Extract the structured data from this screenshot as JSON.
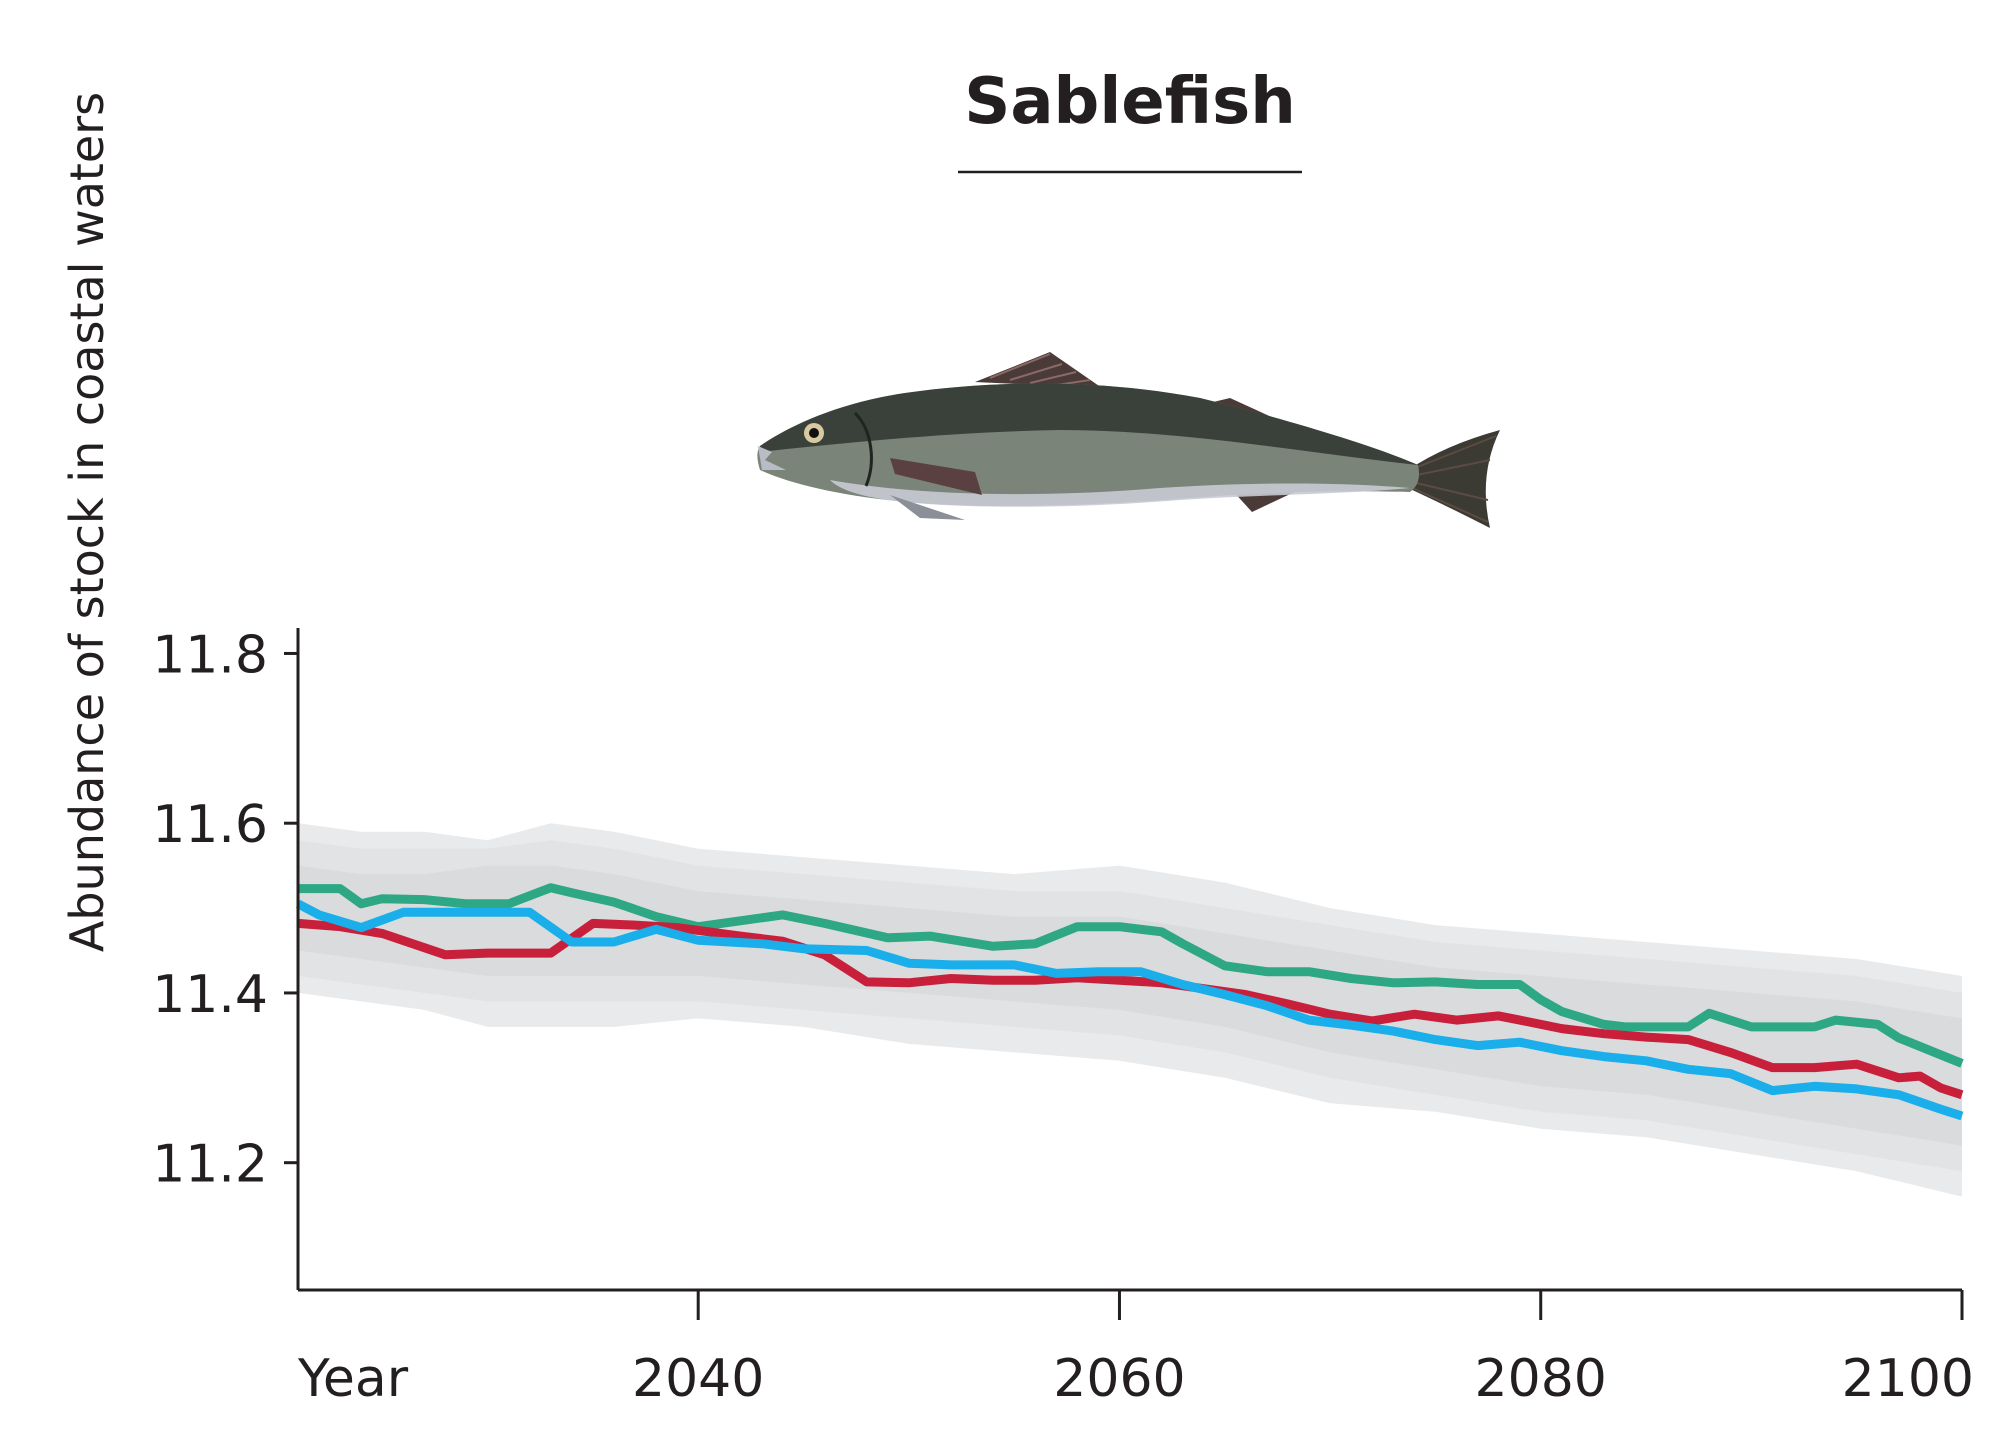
{
  "chart_data": {
    "type": "line",
    "title": "Sablefish",
    "xlabel": "Year",
    "ylabel": "Abundance of stock in coastal waters",
    "xlim": [
      2021,
      2100
    ],
    "ylim": [
      11.05,
      11.83
    ],
    "x_ticks": [
      2040,
      2060,
      2080,
      2100
    ],
    "x_tick_labels": [
      "2040",
      "2060",
      "2080",
      "2100"
    ],
    "y_ticks": [
      11.2,
      11.4,
      11.6,
      11.8
    ],
    "y_tick_labels": [
      "11.2",
      "11.4",
      "11.6",
      "11.8"
    ],
    "grid": false,
    "legend": "none",
    "illustration": "sablefish",
    "series": [
      {
        "color": "#2ea784",
        "x": [
          2021,
          2023,
          2024,
          2025,
          2027,
          2029,
          2031,
          2033,
          2034,
          2036,
          2038,
          2040,
          2044,
          2046,
          2049,
          2051,
          2054,
          2056,
          2058,
          2060,
          2062,
          2063,
          2065,
          2067,
          2069,
          2071,
          2073,
          2075,
          2077,
          2079,
          2080,
          2081,
          2083,
          2084,
          2086,
          2087,
          2088,
          2090,
          2093,
          2094,
          2096,
          2097,
          2099,
          2100
        ],
        "y": [
          11.523,
          11.523,
          11.505,
          11.511,
          11.51,
          11.505,
          11.505,
          11.524,
          11.518,
          11.507,
          11.49,
          11.478,
          11.492,
          11.482,
          11.465,
          11.467,
          11.455,
          11.458,
          11.478,
          11.478,
          11.472,
          11.458,
          11.432,
          11.425,
          11.425,
          11.417,
          11.412,
          11.413,
          11.41,
          11.41,
          11.392,
          11.378,
          11.363,
          11.36,
          11.36,
          11.36,
          11.376,
          11.36,
          11.36,
          11.368,
          11.363,
          11.347,
          11.327,
          11.317
        ]
      },
      {
        "color": "#c8203b",
        "x": [
          2021,
          2023,
          2025,
          2028,
          2030,
          2033,
          2035,
          2037,
          2039,
          2042,
          2044,
          2046,
          2048,
          2050,
          2052,
          2054,
          2056,
          2058,
          2060,
          2062,
          2064,
          2066,
          2068,
          2070,
          2072,
          2074,
          2076,
          2078,
          2079,
          2081,
          2083,
          2085,
          2087,
          2089,
          2091,
          2093,
          2095,
          2097,
          2098,
          2099,
          2100
        ],
        "y": [
          11.482,
          11.478,
          11.47,
          11.445,
          11.447,
          11.447,
          11.482,
          11.48,
          11.477,
          11.467,
          11.461,
          11.445,
          11.413,
          11.412,
          11.417,
          11.415,
          11.415,
          11.418,
          11.415,
          11.412,
          11.405,
          11.398,
          11.387,
          11.375,
          11.367,
          11.375,
          11.368,
          11.373,
          11.368,
          11.358,
          11.352,
          11.348,
          11.345,
          11.33,
          11.312,
          11.312,
          11.316,
          11.3,
          11.302,
          11.288,
          11.28
        ]
      },
      {
        "color": "#1aaeea",
        "x": [
          2021,
          2022,
          2024,
          2026,
          2028,
          2030,
          2032,
          2034,
          2036,
          2038,
          2040,
          2043,
          2045,
          2048,
          2050,
          2052,
          2055,
          2057,
          2059,
          2061,
          2063,
          2065,
          2067,
          2069,
          2071,
          2073,
          2075,
          2077,
          2079,
          2081,
          2083,
          2085,
          2087,
          2089,
          2091,
          2093,
          2095,
          2097,
          2099,
          2100
        ],
        "y": [
          11.505,
          11.492,
          11.477,
          11.495,
          11.495,
          11.495,
          11.495,
          11.46,
          11.46,
          11.475,
          11.462,
          11.458,
          11.452,
          11.45,
          11.435,
          11.433,
          11.433,
          11.423,
          11.425,
          11.425,
          11.41,
          11.398,
          11.385,
          11.368,
          11.362,
          11.355,
          11.345,
          11.338,
          11.342,
          11.332,
          11.325,
          11.32,
          11.31,
          11.305,
          11.285,
          11.29,
          11.287,
          11.28,
          11.263,
          11.255
        ]
      }
    ],
    "uncertainty_bands": [
      {
        "color": "#e9eaeb",
        "x": [
          2021,
          2024,
          2027,
          2030,
          2033,
          2036,
          2040,
          2045,
          2050,
          2055,
          2060,
          2065,
          2070,
          2075,
          2080,
          2085,
          2090,
          2095,
          2100
        ],
        "upper": [
          11.6,
          11.59,
          11.59,
          11.58,
          11.6,
          11.59,
          11.57,
          11.56,
          11.55,
          11.54,
          11.55,
          11.53,
          11.5,
          11.48,
          11.47,
          11.46,
          11.45,
          11.44,
          11.42
        ],
        "lower": [
          11.4,
          11.39,
          11.38,
          11.36,
          11.36,
          11.36,
          11.37,
          11.36,
          11.34,
          11.33,
          11.32,
          11.3,
          11.27,
          11.26,
          11.24,
          11.23,
          11.21,
          11.19,
          11.16
        ]
      },
      {
        "color": "#e2e3e5",
        "x": [
          2021,
          2024,
          2027,
          2030,
          2033,
          2036,
          2040,
          2045,
          2050,
          2055,
          2060,
          2065,
          2070,
          2075,
          2080,
          2085,
          2090,
          2095,
          2100
        ],
        "upper": [
          11.58,
          11.57,
          11.57,
          11.57,
          11.58,
          11.57,
          11.55,
          11.54,
          11.53,
          11.52,
          11.52,
          11.5,
          11.48,
          11.46,
          11.45,
          11.44,
          11.43,
          11.42,
          11.4
        ],
        "lower": [
          11.42,
          11.41,
          11.4,
          11.39,
          11.39,
          11.39,
          11.39,
          11.38,
          11.37,
          11.36,
          11.35,
          11.33,
          11.3,
          11.28,
          11.26,
          11.25,
          11.23,
          11.21,
          11.19
        ]
      },
      {
        "color": "#dadbdd",
        "x": [
          2021,
          2024,
          2027,
          2030,
          2033,
          2036,
          2040,
          2045,
          2050,
          2055,
          2060,
          2065,
          2070,
          2075,
          2080,
          2085,
          2090,
          2095,
          2100
        ],
        "upper": [
          11.55,
          11.54,
          11.54,
          11.55,
          11.55,
          11.54,
          11.52,
          11.51,
          11.5,
          11.49,
          11.49,
          11.47,
          11.45,
          11.43,
          11.42,
          11.41,
          11.4,
          11.39,
          11.37
        ],
        "lower": [
          11.45,
          11.44,
          11.43,
          11.42,
          11.42,
          11.42,
          11.42,
          11.41,
          11.4,
          11.39,
          11.38,
          11.36,
          11.33,
          11.31,
          11.29,
          11.28,
          11.26,
          11.24,
          11.22
        ]
      }
    ]
  }
}
